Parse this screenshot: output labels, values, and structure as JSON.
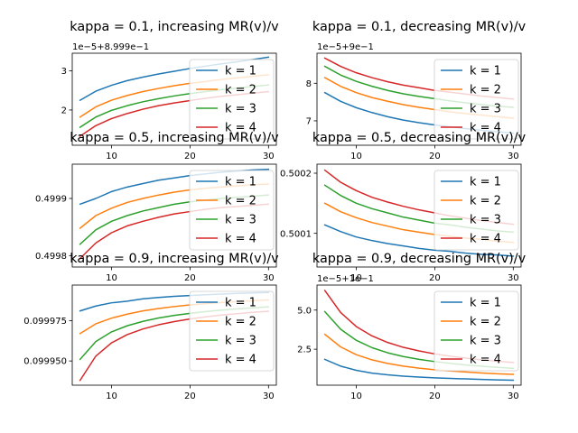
{
  "legend_location": "top-right",
  "chart_data": [
    {
      "type": "line",
      "title": "kappa = 0.1, increasing MR(v)/v",
      "offset_label": "1e−5+8.999e−1",
      "xlim": [
        5,
        31
      ],
      "ylim": [
        1.1,
        3.45
      ],
      "xticks": [
        10,
        20,
        30
      ],
      "yticks": [
        2,
        3
      ],
      "x": [
        6,
        8,
        10,
        12,
        14,
        16,
        18,
        20,
        22,
        24,
        26,
        28,
        30
      ],
      "series": [
        {
          "name": "k = 1",
          "values": [
            2.25,
            2.48,
            2.63,
            2.75,
            2.84,
            2.92,
            2.99,
            3.06,
            3.12,
            3.18,
            3.23,
            3.29,
            3.35
          ]
        },
        {
          "name": "k = 2",
          "values": [
            1.82,
            2.08,
            2.25,
            2.37,
            2.47,
            2.55,
            2.62,
            2.68,
            2.73,
            2.78,
            2.82,
            2.86,
            2.9
          ]
        },
        {
          "name": "k = 3",
          "values": [
            1.56,
            1.82,
            1.99,
            2.11,
            2.21,
            2.29,
            2.36,
            2.42,
            2.47,
            2.52,
            2.56,
            2.6,
            2.64
          ]
        },
        {
          "name": "k = 4",
          "values": [
            1.33,
            1.6,
            1.78,
            1.91,
            2.02,
            2.11,
            2.18,
            2.24,
            2.3,
            2.35,
            2.39,
            2.43,
            2.47
          ]
        }
      ]
    },
    {
      "type": "line",
      "title": "kappa = 0.1, decreasing MR(v)/v",
      "offset_label": "1e−5+9e−1",
      "xlim": [
        5,
        31
      ],
      "ylim": [
        6.35,
        8.8
      ],
      "xticks": [
        10,
        20,
        30
      ],
      "yticks": [
        7,
        8
      ],
      "x": [
        6,
        8,
        10,
        12,
        14,
        16,
        18,
        20,
        22,
        24,
        26,
        28,
        30
      ],
      "series": [
        {
          "name": "k = 1",
          "values": [
            7.75,
            7.52,
            7.35,
            7.22,
            7.11,
            7.02,
            6.95,
            6.89,
            6.84,
            6.79,
            6.75,
            6.71,
            6.67
          ]
        },
        {
          "name": "k = 2",
          "values": [
            8.15,
            7.92,
            7.75,
            7.62,
            7.52,
            7.43,
            7.36,
            7.3,
            7.24,
            7.19,
            7.15,
            7.11,
            7.07
          ]
        },
        {
          "name": "k = 3",
          "values": [
            8.45,
            8.22,
            8.05,
            7.92,
            7.81,
            7.72,
            7.65,
            7.59,
            7.53,
            7.48,
            7.43,
            7.39,
            7.36
          ]
        },
        {
          "name": "k = 4",
          "values": [
            8.67,
            8.45,
            8.28,
            8.15,
            8.04,
            7.95,
            7.88,
            7.81,
            7.76,
            7.71,
            7.66,
            7.62,
            7.58
          ]
        }
      ]
    },
    {
      "type": "line",
      "title": "kappa = 0.5, increasing MR(v)/v",
      "offset_label": "",
      "xlim": [
        5,
        31
      ],
      "ylim": [
        0.49978,
        0.49996
      ],
      "xticks": [
        10,
        20,
        30
      ],
      "yticks": [
        0.4998,
        0.4999
      ],
      "ytick_labels": [
        "0.4998",
        "0.4999"
      ],
      "x": [
        6,
        8,
        10,
        12,
        14,
        16,
        18,
        20,
        22,
        24,
        26,
        28,
        30
      ],
      "series": [
        {
          "name": "k = 1",
          "values": [
            0.49989,
            0.4999,
            0.499912,
            0.49992,
            0.499926,
            0.499932,
            0.499936,
            0.49994,
            0.499943,
            0.499946,
            0.499948,
            0.49995,
            0.499951
          ]
        },
        {
          "name": "k = 2",
          "values": [
            0.499848,
            0.49987,
            0.499883,
            0.499893,
            0.4999,
            0.499906,
            0.499911,
            0.499915,
            0.499918,
            0.49992,
            0.499922,
            0.499924,
            0.499925
          ]
        },
        {
          "name": "k = 3",
          "values": [
            0.49982,
            0.499845,
            0.49986,
            0.49987,
            0.499878,
            0.499884,
            0.49989,
            0.499894,
            0.499897,
            0.4999,
            0.499902,
            0.499904,
            0.499906
          ]
        },
        {
          "name": "k = 4",
          "values": [
            0.499795,
            0.499822,
            0.49984,
            0.499852,
            0.49986,
            0.499867,
            0.499873,
            0.499877,
            0.499881,
            0.499884,
            0.499886,
            0.499888,
            0.49989
          ]
        }
      ]
    },
    {
      "type": "line",
      "title": "kappa = 0.5, decreasing MR(v)/v",
      "offset_label": "",
      "xlim": [
        5,
        31
      ],
      "ylim": [
        0.500044,
        0.500215
      ],
      "xticks": [
        10,
        20,
        30
      ],
      "yticks": [
        0.5001,
        0.5002
      ],
      "ytick_labels": [
        "0.5001",
        "0.5002"
      ],
      "x": [
        6,
        8,
        10,
        12,
        14,
        16,
        18,
        20,
        22,
        24,
        26,
        28,
        30
      ],
      "series": [
        {
          "name": "k = 1",
          "values": [
            0.500114,
            0.500103,
            0.500094,
            0.500088,
            0.500083,
            0.500079,
            0.500075,
            0.500072,
            0.50007,
            0.500067,
            0.500065,
            0.500064,
            0.500062
          ]
        },
        {
          "name": "k = 2",
          "values": [
            0.50015,
            0.500136,
            0.500126,
            0.500118,
            0.500112,
            0.500106,
            0.500102,
            0.500098,
            0.500095,
            0.500092,
            0.50009,
            0.500087,
            0.500085
          ]
        },
        {
          "name": "k = 3",
          "values": [
            0.50018,
            0.500163,
            0.50015,
            0.500141,
            0.500134,
            0.500127,
            0.500122,
            0.500117,
            0.500114,
            0.50011,
            0.500107,
            0.500104,
            0.500102
          ]
        },
        {
          "name": "k = 4",
          "values": [
            0.500205,
            0.500185,
            0.500171,
            0.50016,
            0.500152,
            0.500145,
            0.500139,
            0.500134,
            0.500129,
            0.500125,
            0.500121,
            0.500118,
            0.500115
          ]
        }
      ]
    },
    {
      "type": "line",
      "title": "kappa = 0.9, increasing MR(v)/v",
      "offset_label": "",
      "xlim": [
        5,
        31
      ],
      "ylim": [
        0.099935,
        0.099997
      ],
      "xticks": [
        10,
        20,
        30
      ],
      "yticks": [
        0.09995,
        0.099975
      ],
      "ytick_labels": [
        "0.099950",
        "0.099975"
      ],
      "x": [
        6,
        8,
        10,
        12,
        14,
        16,
        18,
        20,
        22,
        24,
        26,
        28,
        30
      ],
      "series": [
        {
          "name": "k = 1",
          "values": [
            0.099981,
            0.099984,
            0.099986,
            0.099987,
            0.0999885,
            0.0999893,
            0.09999,
            0.0999905,
            0.099991,
            0.0999914,
            0.0999918,
            0.0999921,
            0.0999924
          ]
        },
        {
          "name": "k = 2",
          "values": [
            0.099967,
            0.099973,
            0.0999765,
            0.099979,
            0.099981,
            0.0999825,
            0.0999837,
            0.0999847,
            0.0999855,
            0.0999862,
            0.0999868,
            0.0999873,
            0.0999878
          ]
        },
        {
          "name": "k = 3",
          "values": [
            0.099951,
            0.099962,
            0.099968,
            0.0999718,
            0.0999745,
            0.0999766,
            0.0999782,
            0.0999795,
            0.0999806,
            0.0999815,
            0.0999823,
            0.0999829,
            0.0999835
          ]
        },
        {
          "name": "k = 4",
          "values": [
            0.099938,
            0.099953,
            0.0999612,
            0.0999663,
            0.0999698,
            0.0999724,
            0.0999744,
            0.099976,
            0.0999773,
            0.0999784,
            0.0999793,
            0.0999801,
            0.0999808
          ]
        }
      ]
    },
    {
      "type": "line",
      "title": "kappa = 0.9, decreasing MR(v)/v",
      "offset_label": "1e−5+1e−1",
      "xlim": [
        5,
        31
      ],
      "ylim": [
        0.2,
        6.6
      ],
      "xticks": [
        10,
        20,
        30
      ],
      "yticks": [
        2.5,
        5.0
      ],
      "ytick_labels": [
        "2.5",
        "5.0"
      ],
      "x": [
        6,
        8,
        10,
        12,
        14,
        16,
        18,
        20,
        22,
        24,
        26,
        28,
        30
      ],
      "series": [
        {
          "name": "k = 1",
          "values": [
            1.85,
            1.42,
            1.15,
            0.97,
            0.86,
            0.78,
            0.72,
            0.67,
            0.63,
            0.6,
            0.57,
            0.54,
            0.52
          ]
        },
        {
          "name": "k = 2",
          "values": [
            3.45,
            2.65,
            2.15,
            1.82,
            1.59,
            1.42,
            1.29,
            1.19,
            1.11,
            1.04,
            0.98,
            0.93,
            0.89
          ]
        },
        {
          "name": "k = 3",
          "values": [
            4.9,
            3.78,
            3.07,
            2.6,
            2.27,
            2.03,
            1.85,
            1.71,
            1.59,
            1.49,
            1.41,
            1.34,
            1.28
          ]
        },
        {
          "name": "k = 4",
          "values": [
            6.25,
            4.85,
            3.95,
            3.35,
            2.93,
            2.62,
            2.39,
            2.2,
            2.05,
            1.93,
            1.82,
            1.73,
            1.65
          ]
        }
      ]
    }
  ],
  "colors": {
    "series": [
      "#1f77b4",
      "#ff7f0e",
      "#2ca02c",
      "#d62728"
    ],
    "axes": "#000000",
    "legend_edge": "#cccccc"
  }
}
